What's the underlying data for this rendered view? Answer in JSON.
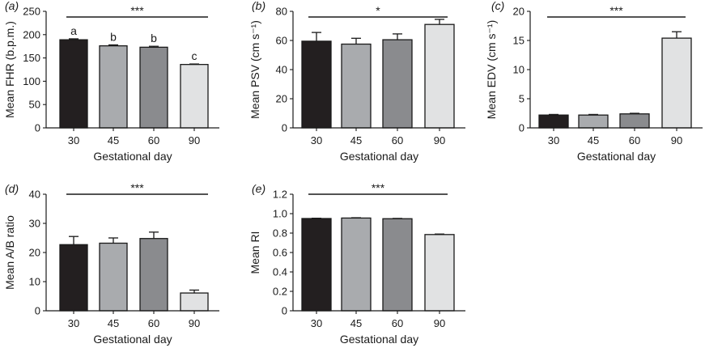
{
  "chart_data": [
    {
      "panel": "(a)",
      "type": "bar",
      "categories": [
        "30",
        "45",
        "60",
        "90"
      ],
      "values": [
        189,
        176,
        173,
        136
      ],
      "errors": [
        2,
        2,
        2,
        1
      ],
      "letters": [
        "a",
        "b",
        "b",
        "c"
      ],
      "significance": "***",
      "xlabel": "Gestational day",
      "ylabel": "Mean FHR (b.p.m.)",
      "ylim": [
        0,
        250
      ],
      "yticks": [
        "0",
        "50",
        "100",
        "150",
        "200",
        "250"
      ]
    },
    {
      "panel": "(b)",
      "type": "bar",
      "categories": [
        "30",
        "45",
        "60",
        "90"
      ],
      "values": [
        59.5,
        57.5,
        60.5,
        71
      ],
      "errors": [
        6,
        4,
        4,
        3.5
      ],
      "letters": [],
      "significance": "*",
      "xlabel": "Gestational day",
      "ylabel": "Mean PSV (cm s⁻¹)",
      "ylim": [
        0,
        80
      ],
      "yticks": [
        "0",
        "20",
        "40",
        "60",
        "80"
      ]
    },
    {
      "panel": "(c)",
      "type": "bar",
      "categories": [
        "30",
        "45",
        "60",
        "90"
      ],
      "values": [
        2.2,
        2.2,
        2.4,
        15.4
      ],
      "errors": [
        0.1,
        0.1,
        0.1,
        1.1
      ],
      "letters": [],
      "significance": "***",
      "xlabel": "Gestational day",
      "ylabel": "Mean EDV (cm s⁻¹)",
      "ylim": [
        0,
        20
      ],
      "yticks": [
        "0",
        "5",
        "10",
        "15",
        "20"
      ]
    },
    {
      "panel": "(d)",
      "type": "bar",
      "categories": [
        "30",
        "45",
        "60",
        "90"
      ],
      "values": [
        22.7,
        23.2,
        24.8,
        6.1
      ],
      "errors": [
        2.8,
        1.8,
        2.2,
        1.0
      ],
      "letters": [],
      "significance": "***",
      "xlabel": "Gestational day",
      "ylabel": "Mean A/B ratio",
      "ylim": [
        0,
        40
      ],
      "yticks": [
        "0",
        "10",
        "20",
        "30",
        "40"
      ]
    },
    {
      "panel": "(e)",
      "type": "bar",
      "categories": [
        "30",
        "45",
        "60",
        "90"
      ],
      "values": [
        0.95,
        0.955,
        0.948,
        0.785
      ],
      "errors": [
        0.003,
        0.003,
        0.003,
        0.005
      ],
      "letters": [],
      "significance": "***",
      "xlabel": "Gestational day",
      "ylabel": "Mean RI",
      "ylim": [
        0,
        1.2
      ],
      "yticks": [
        "0",
        "0.2",
        "0.4",
        "0.6",
        "0.8",
        "1.0",
        "1.2"
      ]
    }
  ],
  "bar_colors": [
    "#231f20",
    "#a9abae",
    "#8a8b8e",
    "#e1e2e3"
  ]
}
